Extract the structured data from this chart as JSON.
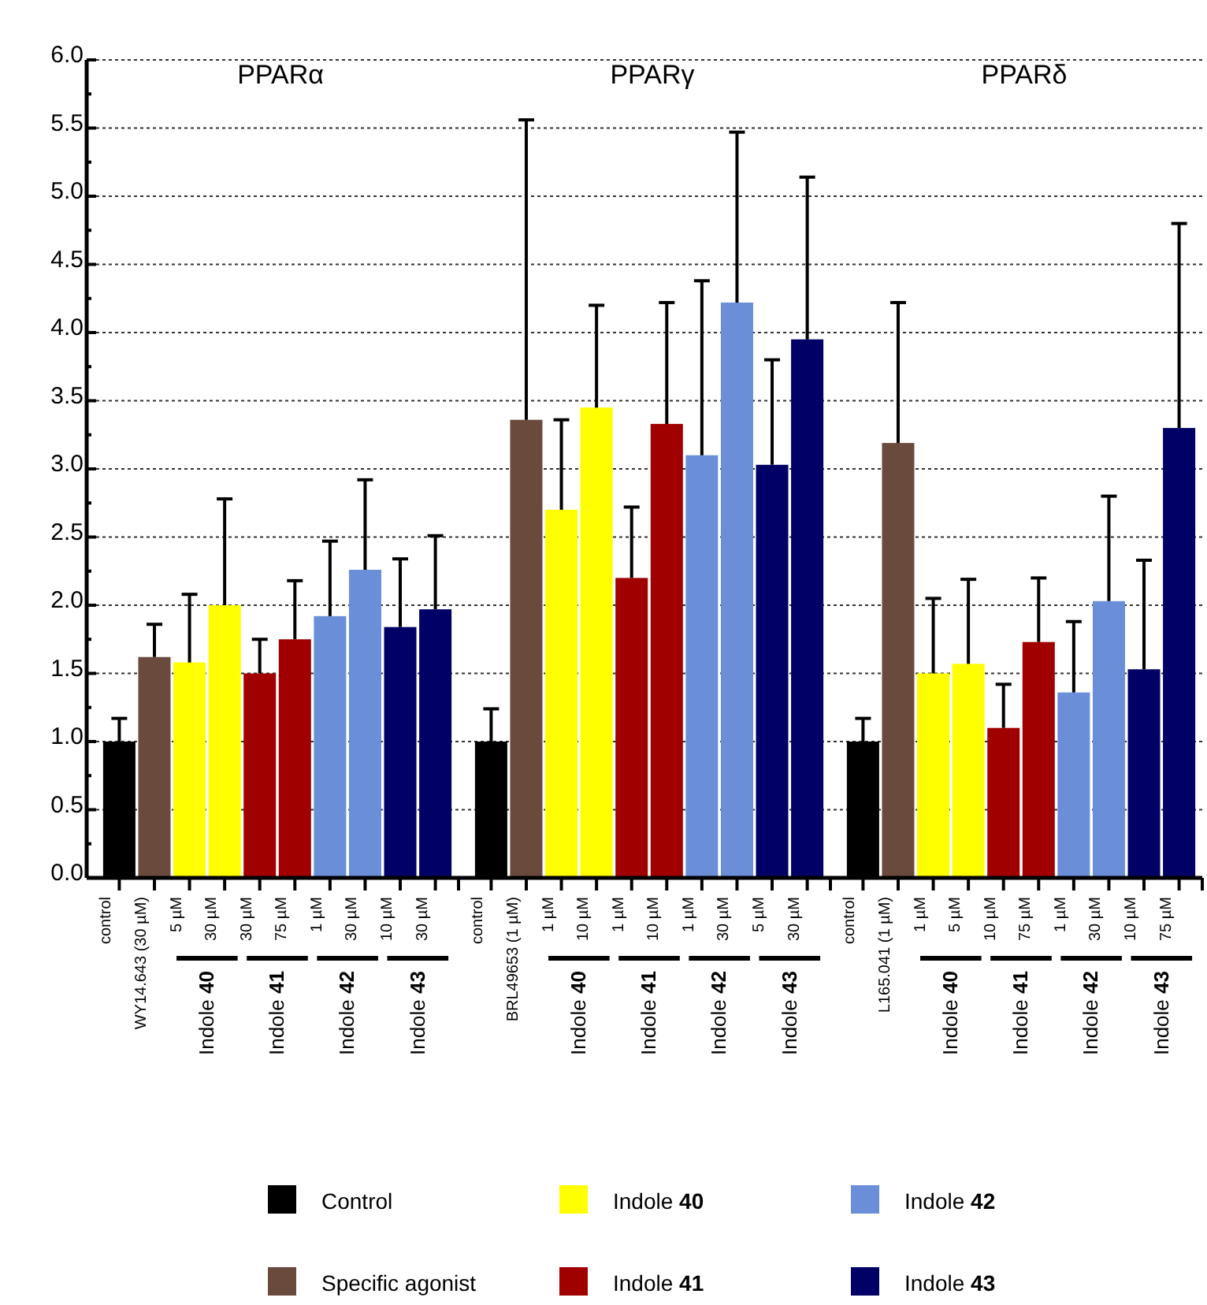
{
  "chart_data": [
    {
      "type": "bar",
      "title": "PPARα",
      "categories": [
        "control",
        "WY14.643 (30 µM)",
        "5 µM",
        "30 µM",
        "30 µM",
        "75 µM",
        "1 µM",
        "30 µM",
        "10 µM",
        "30 µM"
      ],
      "series": [
        {
          "color": "#000000",
          "values": [
            1.0,
            null,
            null,
            null,
            null,
            null,
            null,
            null,
            null,
            null
          ],
          "errors": [
            [
              1.0,
              1.17
            ],
            null,
            null,
            null,
            null,
            null,
            null,
            null,
            null,
            null
          ]
        },
        {
          "color": "#6b4a3e",
          "values": [
            null,
            1.62,
            null,
            null,
            null,
            null,
            null,
            null,
            null,
            null
          ],
          "errors": [
            null,
            [
              1.62,
              1.86
            ],
            null,
            null,
            null,
            null,
            null,
            null,
            null,
            null
          ]
        },
        {
          "color": "#ffff00",
          "values": [
            null,
            null,
            1.58,
            2.0,
            null,
            null,
            null,
            null,
            null,
            null
          ],
          "errors": [
            null,
            null,
            [
              1.58,
              2.08
            ],
            [
              2.0,
              2.78
            ],
            null,
            null,
            null,
            null,
            null,
            null
          ]
        },
        {
          "color": "#a00000",
          "values": [
            null,
            null,
            null,
            null,
            1.5,
            1.75,
            null,
            null,
            null,
            null
          ],
          "errors": [
            null,
            null,
            null,
            null,
            [
              1.5,
              1.75
            ],
            [
              1.75,
              2.18
            ],
            null,
            null,
            null,
            null
          ]
        },
        {
          "color": "#6a8fd8",
          "values": [
            null,
            null,
            null,
            null,
            null,
            null,
            1.92,
            2.26,
            null,
            null
          ],
          "errors": [
            null,
            null,
            null,
            null,
            null,
            null,
            [
              1.92,
              2.47
            ],
            [
              2.26,
              2.92
            ],
            null,
            null
          ]
        },
        {
          "color": "#000066",
          "values": [
            null,
            null,
            null,
            null,
            null,
            null,
            null,
            null,
            1.84,
            1.97
          ],
          "errors": [
            null,
            null,
            null,
            null,
            null,
            null,
            null,
            null,
            [
              1.84,
              2.34
            ],
            [
              1.97,
              2.51
            ]
          ]
        }
      ],
      "annotations": [
        "Indole 40",
        "Indole 41",
        "Indole 42",
        "Indole 43"
      ],
      "ylim": [
        0,
        6
      ],
      "yticks": [
        {
          "value": 0,
          "label": "0.0"
        },
        {
          "value": 0.25,
          "label": null
        },
        "0.5",
        {
          "value": 0.75,
          "label": null
        },
        {
          "value": 1,
          "label": "1.0"
        },
        {
          "value": 1.25,
          "label": null
        },
        1.5,
        {
          "value": 1.75,
          "label": null
        },
        {
          "value": 2,
          "label": "2.0"
        },
        {
          "value": 2.25,
          "label": null
        },
        2.5,
        {
          "value": 2.75,
          "label": null
        },
        {
          "value": 3,
          "label": "3.0"
        },
        {
          "value": 3.25,
          "label": null
        },
        3.5,
        {
          "value": 3.75,
          "label": null
        },
        {
          "value": 4,
          "label": "4.0"
        },
        {
          "value": 4.25,
          "label": null
        },
        4.5,
        {
          "value": 4.75,
          "label": null
        },
        {
          "value": 5,
          "label": "5.0"
        },
        {
          "value": 5.25,
          "label": null
        },
        5.5,
        {
          "value": 5.75,
          "label": null
        },
        {
          "value": 6,
          "label": "6.0"
        }
      ],
      "grid": "y"
    },
    {
      "type": "bar",
      "title": "PPARγ",
      "categories": [
        "control",
        "BRL49653 (1 µM)",
        "1 µM",
        "10 µM",
        "1 µM",
        "10 µM",
        "1 µM",
        "30 µM",
        "5 µM",
        "30 µM"
      ],
      "series": [
        {
          "color": "#000000",
          "values": [
            1.0,
            null,
            null,
            null,
            null,
            null,
            null,
            null,
            null,
            null
          ],
          "errors": [
            [
              1.0,
              1.24
            ],
            null,
            null,
            null,
            null,
            null,
            null,
            null,
            null,
            null
          ]
        },
        {
          "color": "#6b4a3e",
          "values": [
            null,
            3.36,
            null,
            null,
            null,
            null,
            null,
            null,
            null,
            null
          ],
          "errors": [
            null,
            [
              3.36,
              5.56
            ],
            null,
            null,
            null,
            null,
            null,
            null,
            null,
            null
          ]
        },
        {
          "color": "#ffff00",
          "values": [
            null,
            null,
            2.7,
            3.45,
            null,
            null,
            null,
            null,
            null,
            null
          ],
          "errors": [
            null,
            null,
            [
              2.7,
              3.36
            ],
            [
              3.45,
              4.2
            ],
            null,
            null,
            null,
            null,
            null,
            null
          ]
        },
        {
          "color": "#a00000",
          "values": [
            null,
            null,
            null,
            null,
            2.2,
            3.33,
            null,
            null,
            null,
            null
          ],
          "errors": [
            null,
            null,
            null,
            null,
            [
              2.2,
              2.72
            ],
            [
              3.33,
              4.22
            ],
            null,
            null,
            null,
            null
          ]
        },
        {
          "color": "#6a8fd8",
          "values": [
            null,
            null,
            null,
            null,
            null,
            null,
            3.1,
            4.22,
            null,
            null
          ],
          "errors": [
            null,
            null,
            null,
            null,
            null,
            null,
            [
              3.1,
              4.38
            ],
            [
              4.22,
              5.47
            ],
            null,
            null
          ]
        },
        {
          "color": "#000066",
          "values": [
            null,
            null,
            null,
            null,
            null,
            null,
            null,
            null,
            3.03,
            3.95
          ],
          "errors": [
            null,
            null,
            null,
            null,
            null,
            null,
            null,
            null,
            [
              3.03,
              3.8
            ],
            [
              3.95,
              5.14
            ]
          ]
        }
      ],
      "annotations": [
        "Indole 40",
        "Indole 41",
        "Indole 42",
        "Indole 43"
      ],
      "ylim": [
        0,
        6
      ],
      "tick_labels": "x",
      "grid": "y"
    },
    {
      "type": "bar",
      "title": "PPARδ",
      "categories": [
        "control",
        "L165.041 (1 µM)",
        "1 µM",
        "5 µM",
        "10 µM",
        "75 µM",
        "1 µM",
        "30 µM",
        "10 µM",
        "75 µM"
      ],
      "series": [
        {
          "name": "Control",
          "color": "#000000",
          "values": [
            1.0,
            null,
            null,
            null,
            null,
            null,
            null,
            null,
            null,
            null
          ],
          "errors": [
            [
              1.0,
              1.17
            ],
            null,
            null,
            null,
            null,
            null,
            null,
            null,
            null,
            null
          ]
        },
        {
          "name": "Specific agonist",
          "color": "#6b4a3e",
          "values": [
            null,
            3.19,
            null,
            null,
            null,
            null,
            null,
            null,
            null,
            null
          ],
          "errors": [
            null,
            [
              3.19,
              4.22
            ],
            null,
            null,
            null,
            null,
            null,
            null,
            null,
            null
          ]
        },
        {
          "name": "Indole 40",
          "color": "#ffff00",
          "values": [
            null,
            null,
            1.5,
            1.57,
            null,
            null,
            null,
            null,
            null,
            null
          ],
          "errors": [
            null,
            null,
            [
              1.5,
              2.05
            ],
            [
              1.57,
              2.19
            ],
            null,
            null,
            null,
            null,
            null,
            null
          ]
        },
        {
          "name": "Indole 41",
          "color": "#a00000",
          "values": [
            null,
            null,
            null,
            null,
            1.1,
            1.73,
            null,
            null,
            null,
            null
          ],
          "errors": [
            null,
            null,
            null,
            null,
            [
              1.1,
              1.42
            ],
            [
              1.73,
              2.2
            ],
            null,
            null,
            null,
            null
          ]
        },
        {
          "name": "Indole 42",
          "color": "#6a8fd8",
          "values": [
            null,
            null,
            null,
            null,
            null,
            null,
            1.36,
            2.03,
            null,
            null
          ],
          "errors": [
            null,
            null,
            null,
            null,
            null,
            null,
            [
              1.36,
              1.88
            ],
            [
              2.03,
              2.8
            ],
            null,
            null
          ]
        },
        {
          "name": "Indole 43",
          "color": "#000066",
          "values": [
            null,
            null,
            null,
            null,
            null,
            null,
            null,
            null,
            1.53,
            3.3
          ],
          "errors": [
            null,
            null,
            null,
            null,
            null,
            null,
            null,
            null,
            [
              1.53,
              2.33
            ],
            [
              3.3,
              4.8
            ]
          ]
        }
      ],
      "annotations": [
        "Indole 40",
        "Indole 41",
        "Indole 42",
        "Indole 43"
      ],
      "ylim": [
        0,
        6
      ],
      "tick_labels": "x",
      "grid": "y",
      "legend": "bottom"
    }
  ]
}
